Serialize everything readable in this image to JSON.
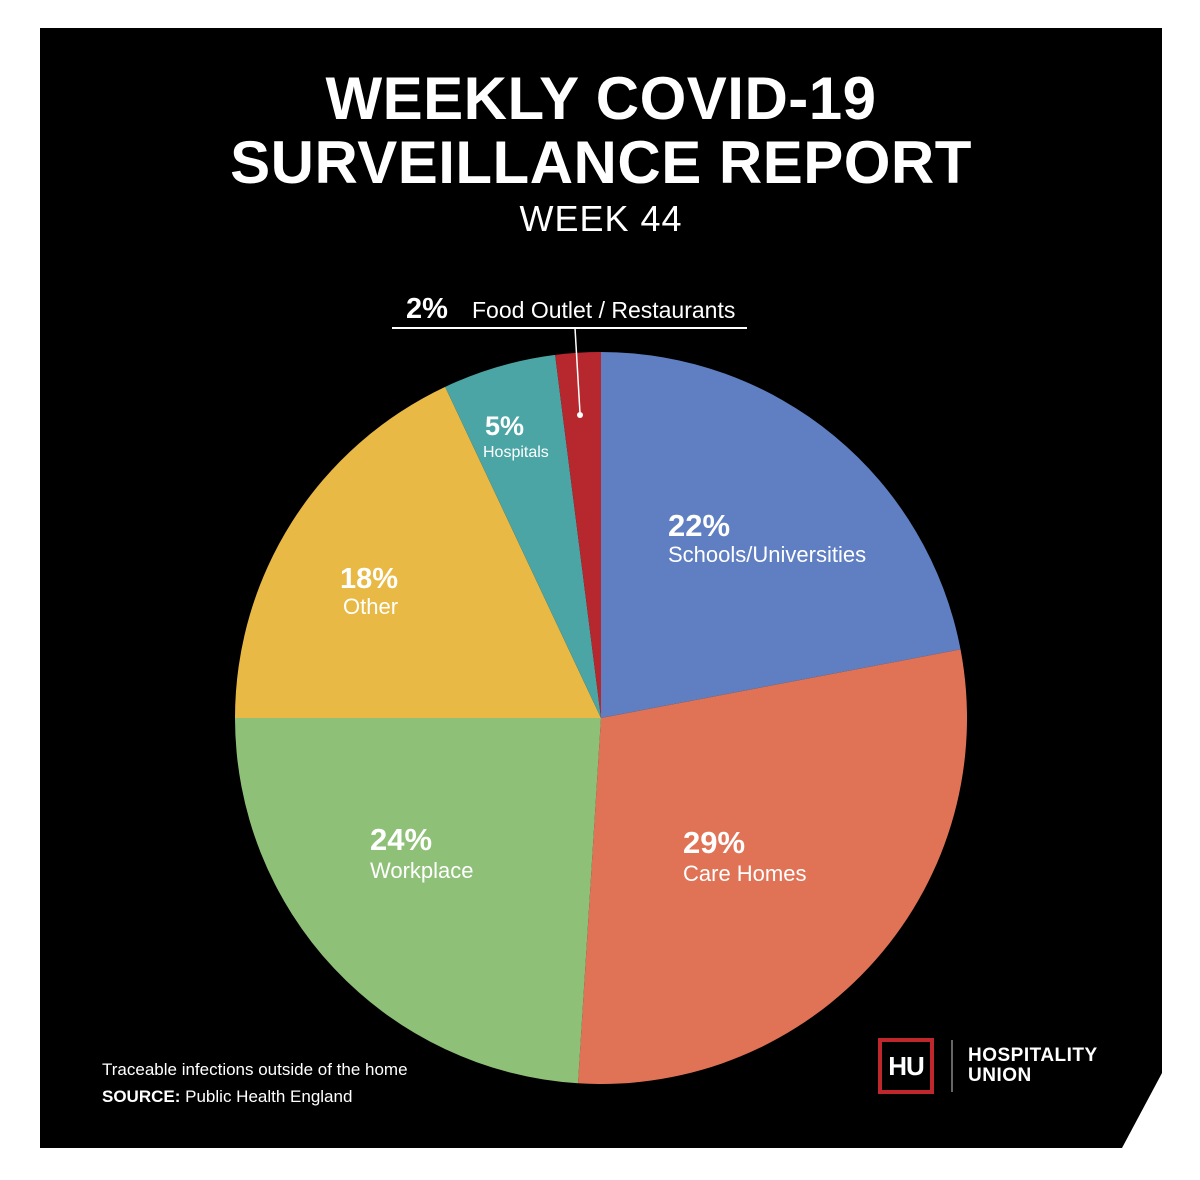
{
  "header": {
    "title_line1": "WEEKLY COVID-19",
    "title_line2": "SURVEILLANCE REPORT",
    "subtitle": "WEEK 44"
  },
  "chart_data": {
    "type": "pie",
    "title": "WEEKLY COVID-19 SURVEILLANCE REPORT",
    "subtitle": "WEEK 44",
    "start_angle_deg": 0,
    "direction": "clockwise",
    "slices": [
      {
        "key": "schools",
        "label": "Schools/Universities",
        "value": 22,
        "pct_text": "22%",
        "color": "#5f7fc2"
      },
      {
        "key": "care",
        "label": "Care Homes",
        "value": 29,
        "pct_text": "29%",
        "color": "#e07356"
      },
      {
        "key": "workplace",
        "label": "Workplace",
        "value": 24,
        "pct_text": "24%",
        "color": "#8fc078"
      },
      {
        "key": "other",
        "label": "Other",
        "value": 18,
        "pct_text": "18%",
        "color": "#e8b944"
      },
      {
        "key": "hospitals",
        "label": "Hospitals",
        "value": 5,
        "pct_text": "5%",
        "color": "#4ba5a5"
      },
      {
        "key": "food",
        "label": "Food Outlet / Restaurants",
        "value": 2,
        "pct_text": "2%",
        "color": "#b7282e"
      }
    ]
  },
  "footer": {
    "note": "Traceable infections outside of the home",
    "source_label": "SOURCE:",
    "source_value": "Public Health England"
  },
  "logo": {
    "mark": "HU",
    "line1": "HOSPITALITY",
    "line2": "UNION",
    "accent_color": "#c0272d"
  },
  "colors": {
    "background": "#000000",
    "text": "#ffffff"
  }
}
